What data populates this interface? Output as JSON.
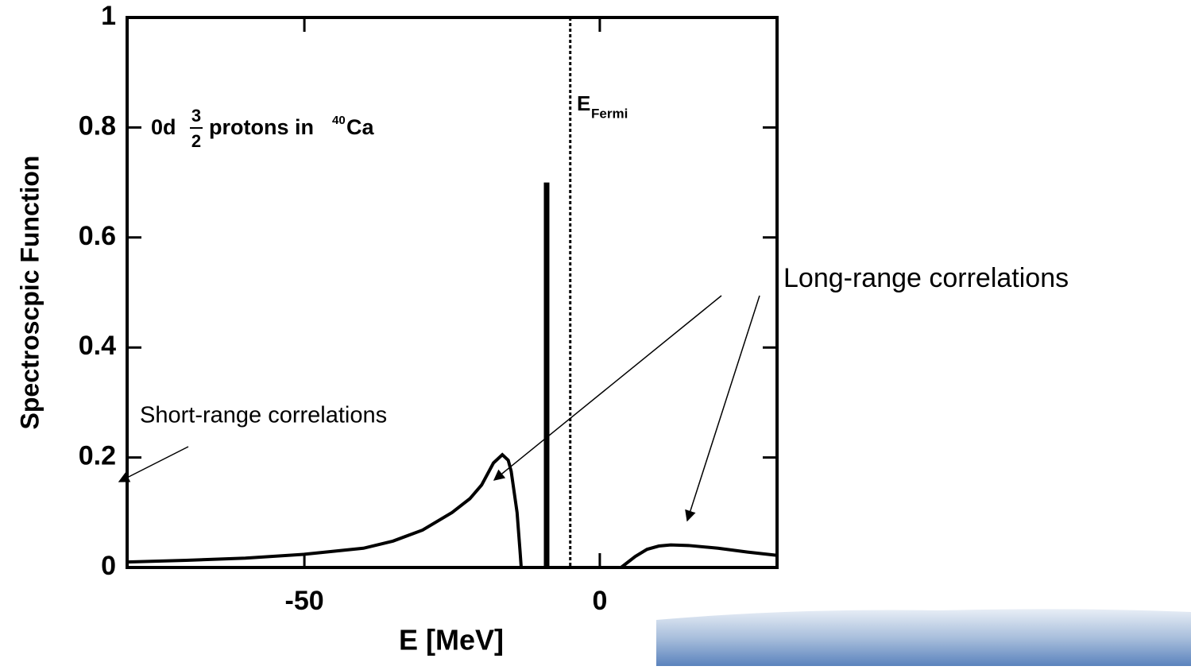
{
  "chart_data": {
    "type": "line",
    "xlabel": "E [MeV]",
    "ylabel": "Spectroscpic Function",
    "xlim": [
      -80,
      30
    ],
    "ylim": [
      0,
      1
    ],
    "xticks": [
      -50,
      0
    ],
    "yticks": [
      0,
      0.2,
      0.4,
      0.6,
      0.8,
      1
    ],
    "series": [
      {
        "color": "#000000",
        "x": [
          -80,
          -70,
          -60,
          -50,
          -40,
          -35,
          -30,
          -25,
          -22,
          -20,
          -18,
          -16.5,
          -15.5,
          -15,
          -14,
          -13.5,
          -13.3,
          null,
          3.6,
          6,
          8,
          10,
          12,
          15,
          20,
          25,
          30
        ],
        "values": [
          0.01,
          0.013,
          0.017,
          0.024,
          0.035,
          0.048,
          0.068,
          0.1,
          0.125,
          0.15,
          0.19,
          0.205,
          0.195,
          0.175,
          0.1,
          0.03,
          0,
          null,
          0,
          0.02,
          0.033,
          0.039,
          0.041,
          0.04,
          0.035,
          0.028,
          0.022
        ]
      }
    ],
    "peak": {
      "x": -9,
      "value": 0.7
    },
    "fermi": {
      "x": -5,
      "label": "E",
      "subscript": "Fermi"
    },
    "annotation": {
      "prefix": "0d",
      "numerator": "3",
      "denominator": "2",
      "text": "protons in",
      "mass": "40",
      "element": "Ca"
    },
    "short_range": "Short-range correlations",
    "long_range": "Long-range correlations"
  }
}
